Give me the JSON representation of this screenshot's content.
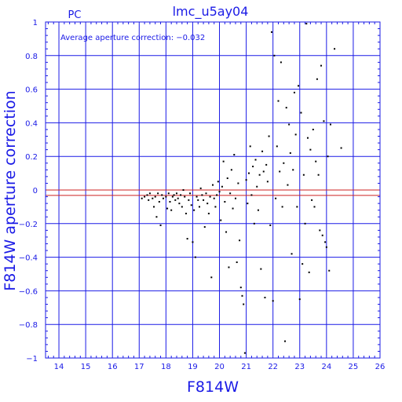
{
  "chart_data": {
    "type": "scatter",
    "title": "lmc_u5ay04",
    "subtitle": "PC",
    "annotation": "Average aperture correction: −0.032",
    "xlabel": "F814W",
    "ylabel": "F814W aperture correction",
    "xlim": [
      13.5,
      26
    ],
    "ylim": [
      -1,
      1
    ],
    "x_ticks": [
      "14",
      "15",
      "16",
      "17",
      "18",
      "19",
      "20",
      "21",
      "22",
      "23",
      "24",
      "25",
      "26"
    ],
    "y_ticks": [
      "1",
      "0.8",
      "0.6",
      "0.4",
      "0.2",
      "0",
      "−0.2",
      "−0.4",
      "−0.6",
      "−0.8",
      "−1"
    ],
    "grid": true,
    "reference_lines": [
      {
        "y": 0,
        "color": "#cc2222"
      },
      {
        "y": -0.032,
        "color": "#cc2222"
      }
    ],
    "colors": {
      "axes": "#1a1ae6",
      "grid": "#1a1ae6",
      "points": "#000000",
      "reference": "#cc2222"
    },
    "points": [
      [
        17.1,
        -0.05
      ],
      [
        17.2,
        -0.04
      ],
      [
        17.3,
        -0.03
      ],
      [
        17.35,
        -0.06
      ],
      [
        17.4,
        -0.02
      ],
      [
        17.5,
        -0.05
      ],
      [
        17.55,
        -0.1
      ],
      [
        17.6,
        -0.04
      ],
      [
        17.65,
        -0.16
      ],
      [
        17.7,
        -0.02
      ],
      [
        17.75,
        -0.07
      ],
      [
        17.8,
        -0.21
      ],
      [
        17.85,
        -0.03
      ],
      [
        17.9,
        -0.05
      ],
      [
        18.0,
        -0.04
      ],
      [
        18.05,
        -0.11
      ],
      [
        18.1,
        -0.02
      ],
      [
        18.15,
        -0.07
      ],
      [
        18.2,
        -0.12
      ],
      [
        18.25,
        -0.04
      ],
      [
        18.3,
        -0.03
      ],
      [
        18.35,
        -0.06
      ],
      [
        18.4,
        -0.02
      ],
      [
        18.45,
        -0.05
      ],
      [
        18.5,
        -0.08
      ],
      [
        18.55,
        -0.03
      ],
      [
        18.6,
        -0.1
      ],
      [
        18.65,
        0.0
      ],
      [
        18.7,
        -0.04
      ],
      [
        18.75,
        -0.14
      ],
      [
        18.8,
        -0.29
      ],
      [
        18.85,
        -0.06
      ],
      [
        18.9,
        -0.02
      ],
      [
        18.95,
        -0.09
      ],
      [
        19.0,
        -0.31
      ],
      [
        19.05,
        -0.12
      ],
      [
        19.1,
        -0.4
      ],
      [
        19.15,
        -0.04
      ],
      [
        19.2,
        -0.06
      ],
      [
        19.25,
        -0.1
      ],
      [
        19.3,
        0.01
      ],
      [
        19.35,
        -0.03
      ],
      [
        19.4,
        -0.06
      ],
      [
        19.45,
        -0.22
      ],
      [
        19.5,
        -0.02
      ],
      [
        19.55,
        -0.08
      ],
      [
        19.6,
        -0.14
      ],
      [
        19.65,
        -0.04
      ],
      [
        19.7,
        -0.52
      ],
      [
        19.75,
        0.03
      ],
      [
        19.8,
        -0.05
      ],
      [
        19.85,
        -0.1
      ],
      [
        19.9,
        -0.03
      ],
      [
        19.95,
        0.05
      ],
      [
        20.0,
        -0.01
      ],
      [
        20.05,
        -0.18
      ],
      [
        20.1,
        0.02
      ],
      [
        20.15,
        0.17
      ],
      [
        20.2,
        -0.07
      ],
      [
        20.25,
        -0.25
      ],
      [
        20.3,
        0.07
      ],
      [
        20.35,
        -0.46
      ],
      [
        20.4,
        -0.02
      ],
      [
        20.45,
        0.12
      ],
      [
        20.5,
        -0.11
      ],
      [
        20.55,
        0.21
      ],
      [
        20.6,
        -0.05
      ],
      [
        20.65,
        -0.43
      ],
      [
        20.7,
        0.04
      ],
      [
        20.75,
        -0.3
      ],
      [
        20.8,
        -0.58
      ],
      [
        20.85,
        -0.63
      ],
      [
        20.9,
        -0.68
      ],
      [
        20.95,
        -0.97
      ],
      [
        21.0,
        0.06
      ],
      [
        21.05,
        -0.08
      ],
      [
        21.1,
        0.1
      ],
      [
        21.15,
        0.26
      ],
      [
        21.2,
        -0.03
      ],
      [
        21.25,
        0.14
      ],
      [
        21.3,
        -0.2
      ],
      [
        21.35,
        0.18
      ],
      [
        21.4,
        0.02
      ],
      [
        21.45,
        -0.12
      ],
      [
        21.5,
        0.09
      ],
      [
        21.55,
        -0.47
      ],
      [
        21.6,
        0.23
      ],
      [
        21.65,
        0.11
      ],
      [
        21.7,
        -0.64
      ],
      [
        21.75,
        0.15
      ],
      [
        21.8,
        0.05
      ],
      [
        21.85,
        0.32
      ],
      [
        21.9,
        -0.21
      ],
      [
        21.95,
        0.94
      ],
      [
        22.0,
        -0.66
      ],
      [
        22.05,
        0.8
      ],
      [
        22.1,
        -0.05
      ],
      [
        22.15,
        0.26
      ],
      [
        22.2,
        0.53
      ],
      [
        22.25,
        0.11
      ],
      [
        22.3,
        0.76
      ],
      [
        22.35,
        -0.1
      ],
      [
        22.4,
        0.16
      ],
      [
        22.45,
        -0.9
      ],
      [
        22.5,
        0.49
      ],
      [
        22.55,
        0.03
      ],
      [
        22.6,
        0.39
      ],
      [
        22.65,
        0.22
      ],
      [
        22.7,
        -0.38
      ],
      [
        22.75,
        0.12
      ],
      [
        22.8,
        0.58
      ],
      [
        22.85,
        0.33
      ],
      [
        22.9,
        -0.1
      ],
      [
        22.95,
        0.62
      ],
      [
        23.0,
        -0.65
      ],
      [
        23.05,
        0.46
      ],
      [
        23.1,
        -0.44
      ],
      [
        23.15,
        0.09
      ],
      [
        23.2,
        -0.2
      ],
      [
        23.25,
        0.99
      ],
      [
        23.3,
        0.31
      ],
      [
        23.35,
        -0.49
      ],
      [
        23.4,
        0.24
      ],
      [
        23.45,
        -0.06
      ],
      [
        23.5,
        0.36
      ],
      [
        23.55,
        -0.1
      ],
      [
        23.6,
        0.17
      ],
      [
        23.65,
        0.66
      ],
      [
        23.7,
        0.09
      ],
      [
        23.75,
        -0.24
      ],
      [
        23.8,
        0.74
      ],
      [
        23.85,
        -0.27
      ],
      [
        23.9,
        0.41
      ],
      [
        23.95,
        -0.31
      ],
      [
        24.0,
        -0.34
      ],
      [
        24.05,
        0.2
      ],
      [
        24.1,
        -0.48
      ],
      [
        24.15,
        0.39
      ],
      [
        24.3,
        0.84
      ],
      [
        24.55,
        0.25
      ]
    ]
  }
}
